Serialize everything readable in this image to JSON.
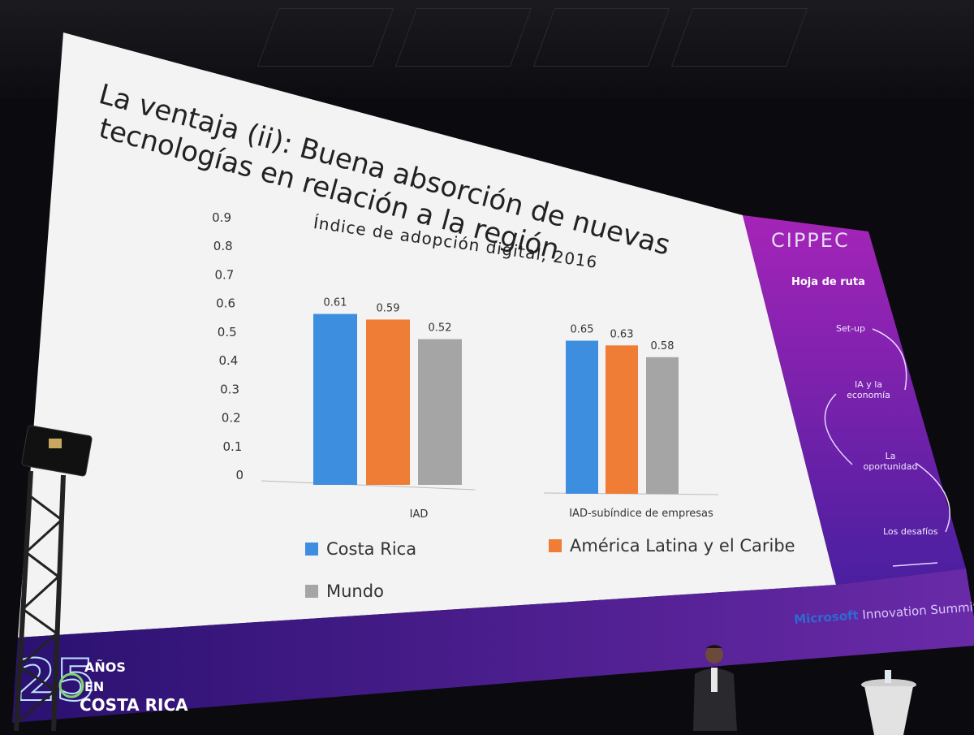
{
  "slide": {
    "title_line1": "La ventaja (ii): Buena absorción de nuevas",
    "title_line2": "tecnologías en relación a la región"
  },
  "chart_data": {
    "type": "bar",
    "title": "Índice de adopción digital, 2016",
    "categories": [
      "IAD",
      "IAD-subíndice de empresas"
    ],
    "series": [
      {
        "name": "Costa Rica",
        "values": [
          0.61,
          0.65
        ],
        "color": "#3e8ee0"
      },
      {
        "name": "América Latina y el Caribe",
        "values": [
          0.59,
          0.63
        ],
        "color": "#ef7d35"
      },
      {
        "name": "Mundo",
        "values": [
          0.52,
          0.58
        ],
        "color": "#a5a5a5"
      }
    ],
    "value_labels": [
      [
        "0.61",
        "0.65"
      ],
      [
        "0.59",
        "0.63"
      ],
      [
        "0.52",
        "0.58"
      ]
    ],
    "y_ticks": [
      "0",
      "0.1",
      "0.2",
      "0.3",
      "0.4",
      "0.5",
      "0.6",
      "0.7",
      "0.8",
      "0.9"
    ],
    "ylim": [
      0,
      0.9
    ],
    "legend_position": "bottom",
    "grid": false
  },
  "sidebar": {
    "brand": "CIPPEC",
    "heading": "Hoja de ruta",
    "steps": [
      "Set-up",
      "IA y la economía",
      "La oportunidad",
      "Los desafíos"
    ]
  },
  "banner": {
    "anos": "AÑOS",
    "en": "EN",
    "country": "COSTA RICA",
    "summit_brand": "Microsoft",
    "summit_event": "Innovation Summit"
  }
}
